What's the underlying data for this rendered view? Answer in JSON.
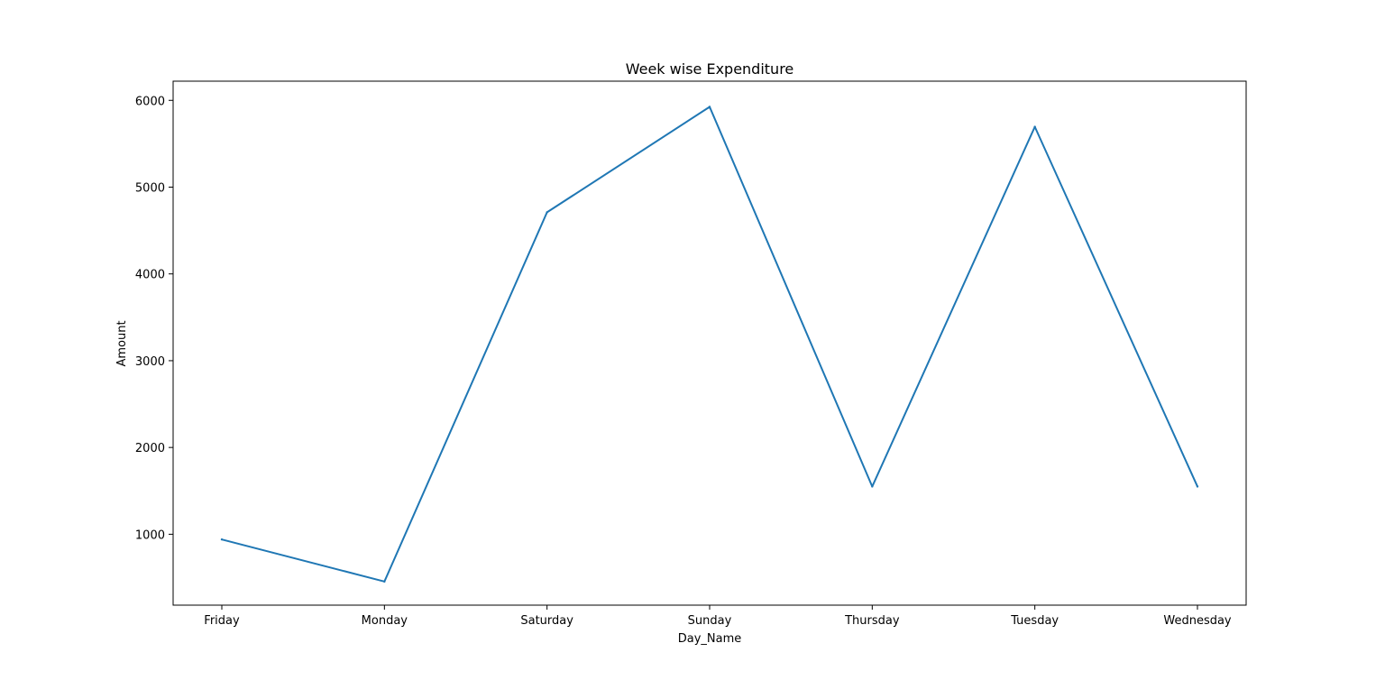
{
  "chart_data": {
    "type": "line",
    "title": "Week wise Expenditure",
    "xlabel": "Day_Name",
    "ylabel": "Amount",
    "categories": [
      "Friday",
      "Monday",
      "Saturday",
      "Sunday",
      "Thursday",
      "Tuesday",
      "Wednesday"
    ],
    "series": [
      {
        "values": [
          940,
          455,
          4710,
          5925,
          1550,
          5695,
          1550
        ],
        "color": "#1f77b4"
      }
    ],
    "ylim": [
      183,
      6221
    ],
    "yticks": [
      1000,
      2000,
      3000,
      4000,
      5000,
      6000
    ],
    "grid": false,
    "legend": "none"
  }
}
